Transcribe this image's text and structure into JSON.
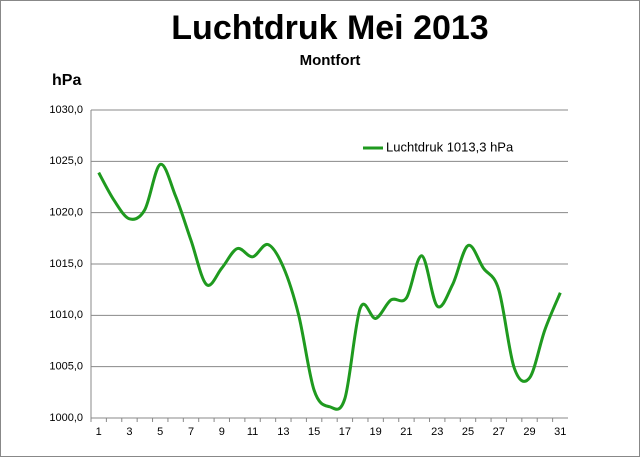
{
  "chart_data": {
    "type": "line",
    "title": "Luchtdruk Mei 2013",
    "subtitle": "Montfort",
    "y_label": "hPa",
    "categories": [
      "1",
      null,
      "3",
      null,
      "5",
      null,
      "7",
      null,
      "9",
      null,
      "11",
      null,
      "13",
      null,
      "15",
      null,
      "17",
      null,
      "19",
      null,
      "21",
      null,
      "23",
      null,
      "25",
      null,
      "27",
      null,
      "29",
      null,
      "31"
    ],
    "series": [
      {
        "name": "Luchtdruk 1013,3 hPa",
        "color": "#1f9a1f",
        "values": [
          1023.9,
          1021.2,
          1019.4,
          1020.3,
          1024.7,
          1021.6,
          1017.3,
          1013.0,
          1014.6,
          1016.5,
          1015.7,
          1016.9,
          1014.7,
          1010.0,
          1002.7,
          1001.1,
          1001.9,
          1010.7,
          1009.7,
          1011.5,
          1011.7,
          1015.8,
          1010.9,
          1013.0,
          1016.8,
          1014.6,
          1012.5,
          1004.9,
          1003.9,
          1008.6,
          1012.2
        ]
      }
    ],
    "ylim": [
      1000,
      1030
    ],
    "yticks": [
      {
        "value": 1000,
        "label": "1000,0"
      },
      {
        "value": 1005,
        "label": "1005,0"
      },
      {
        "value": 1010,
        "label": "1010,0"
      },
      {
        "value": 1015,
        "label": "1015,0"
      },
      {
        "value": 1020,
        "label": "1020,0"
      },
      {
        "value": 1025,
        "label": "1025,0"
      },
      {
        "value": 1030,
        "label": "1030,0"
      }
    ],
    "grid": true,
    "legend": "upper right"
  }
}
